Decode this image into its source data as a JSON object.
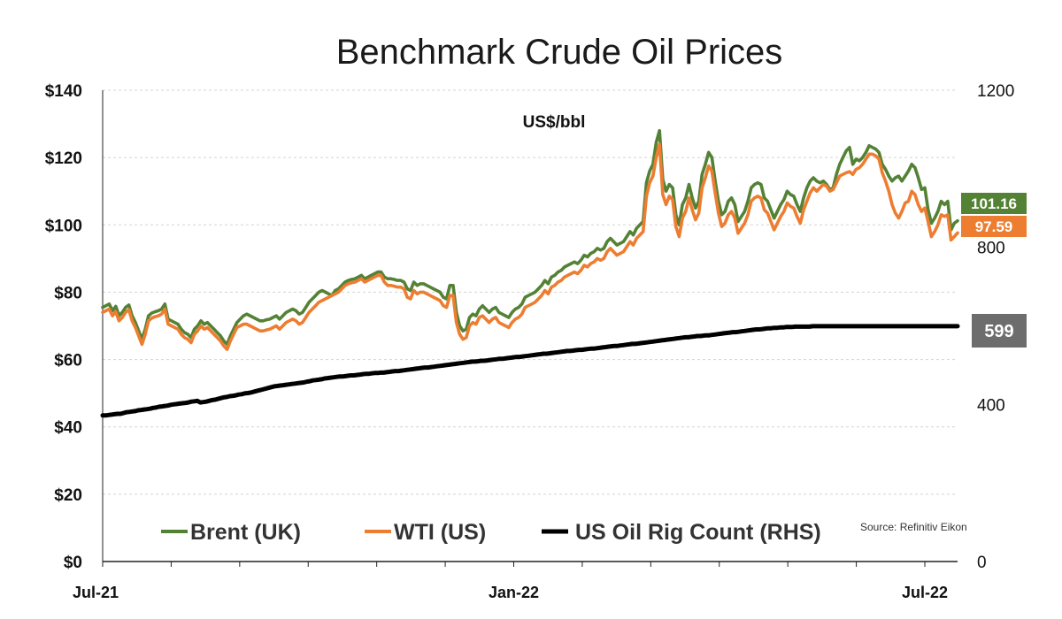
{
  "chart_data": {
    "type": "line",
    "title": "Benchmark Crude Oil Prices",
    "unit_label": "US$/bbl",
    "source": "Source: Refinitiv Eikon",
    "x_tick_labels": [
      "Jul-21",
      "Jan-22",
      "Jul-22"
    ],
    "y_left": {
      "range": [
        0,
        140
      ],
      "tick_values": [
        0,
        20,
        40,
        60,
        80,
        100,
        120,
        140
      ],
      "tick_labels": [
        "$0",
        "$20",
        "$40",
        "$60",
        "$80",
        "$100",
        "$120",
        "$140"
      ]
    },
    "y_right": {
      "range": [
        0,
        1200
      ],
      "tick_values": [
        0,
        400,
        800,
        1200
      ],
      "tick_labels": [
        "0",
        "400",
        "800",
        "1200"
      ]
    },
    "grid": true,
    "legend_position": "bottom",
    "series": [
      {
        "name": "Brent (UK)",
        "axis": "left",
        "color": "#548235",
        "end_label": "101.16",
        "values": [
          75.5,
          76.0,
          76.5,
          74.5,
          75.8,
          73.0,
          74.0,
          75.5,
          76.2,
          73.0,
          71.0,
          68.5,
          66.0,
          69.0,
          73.0,
          73.8,
          74.2,
          74.5,
          75.0,
          76.5,
          72.0,
          71.5,
          71.0,
          70.5,
          69.0,
          68.0,
          67.5,
          66.5,
          69.0,
          70.0,
          71.5,
          70.5,
          71.0,
          70.0,
          69.0,
          68.0,
          67.0,
          65.5,
          64.5,
          67.0,
          69.0,
          71.0,
          72.0,
          73.0,
          73.5,
          73.0,
          72.5,
          72.0,
          71.5,
          71.5,
          71.8,
          72.0,
          72.5,
          73.0,
          72.0,
          73.0,
          74.0,
          74.5,
          75.0,
          74.5,
          73.5,
          74.0,
          75.5,
          77.0,
          78.0,
          79.0,
          80.0,
          80.5,
          80.0,
          79.5,
          79.0,
          80.5,
          81.0,
          82.0,
          83.0,
          83.5,
          83.8,
          84.0,
          84.5,
          85.0,
          84.0,
          84.5,
          85.0,
          85.5,
          86.0,
          86.0,
          84.5,
          84.0,
          84.0,
          83.8,
          83.5,
          83.5,
          83.0,
          81.0,
          80.5,
          83.0,
          82.0,
          82.5,
          82.5,
          82.0,
          81.5,
          81.0,
          80.5,
          80.0,
          78.5,
          78.0,
          82.0,
          82.0,
          74.0,
          70.0,
          68.5,
          69.0,
          72.5,
          73.5,
          73.0,
          75.0,
          76.0,
          75.0,
          74.0,
          75.0,
          75.5,
          74.0,
          73.5,
          73.0,
          72.5,
          74.0,
          75.0,
          75.5,
          76.5,
          78.5,
          79.0,
          79.5,
          80.0,
          81.0,
          82.0,
          83.5,
          82.5,
          84.5,
          85.0,
          86.0,
          86.5,
          87.5,
          88.0,
          88.5,
          89.0,
          88.5,
          89.5,
          91.0,
          90.5,
          91.5,
          92.0,
          93.0,
          92.5,
          93.0,
          95.0,
          96.0,
          95.0,
          94.0,
          94.5,
          95.0,
          96.5,
          98.0,
          97.0,
          99.0,
          100.0,
          101.0,
          112.5,
          116.0,
          118.0,
          124.5,
          128.0,
          113.5,
          110.0,
          112.0,
          111.0,
          103.0,
          100.0,
          106.0,
          108.0,
          112.0,
          108.0,
          105.0,
          107.0,
          115.0,
          118.0,
          121.5,
          120.0,
          113.0,
          107.0,
          103.0,
          104.0,
          107.0,
          108.0,
          106.0,
          101.0,
          102.5,
          104.0,
          107.0,
          111.0,
          112.0,
          112.5,
          112.0,
          108.0,
          107.0,
          104.5,
          102.0,
          104.0,
          106.0,
          107.5,
          110.0,
          109.0,
          108.5,
          106.0,
          104.0,
          108.0,
          111.0,
          113.0,
          114.0,
          113.0,
          112.5,
          113.0,
          112.0,
          110.5,
          111.0,
          115.0,
          118.0,
          120.0,
          122.0,
          123.0,
          118.0,
          119.5,
          119.0,
          120.0,
          121.5,
          123.5,
          123.0,
          122.5,
          121.5,
          118.0,
          116.5,
          114.5,
          113.0,
          114.0,
          114.5,
          113.0,
          114.5,
          116.0,
          118.0,
          117.0,
          114.0,
          110.5,
          111.0,
          104.5,
          100.5,
          102.0,
          104.0,
          107.0,
          106.0,
          107.0,
          98.5,
          100.5,
          101.2
        ]
      },
      {
        "name": "WTI (US)",
        "axis": "left",
        "color": "#ED7D31",
        "end_label": "97.59",
        "values": [
          74.0,
          74.5,
          75.0,
          73.0,
          74.2,
          71.5,
          72.5,
          74.0,
          74.8,
          71.5,
          69.5,
          67.0,
          64.5,
          67.5,
          71.5,
          72.3,
          72.7,
          73.0,
          73.5,
          75.0,
          70.5,
          70.0,
          69.5,
          69.0,
          67.5,
          66.5,
          66.0,
          65.0,
          67.5,
          68.5,
          70.0,
          69.0,
          69.5,
          68.5,
          67.5,
          66.5,
          65.5,
          64.0,
          63.0,
          65.5,
          67.5,
          69.5,
          70.0,
          70.5,
          70.5,
          70.0,
          69.5,
          69.0,
          68.5,
          68.5,
          68.8,
          69.0,
          69.5,
          70.0,
          69.0,
          70.0,
          71.0,
          71.5,
          72.0,
          71.5,
          70.5,
          71.0,
          72.5,
          74.0,
          75.0,
          76.0,
          77.0,
          77.5,
          78.0,
          78.5,
          79.0,
          79.5,
          80.0,
          81.0,
          82.0,
          82.5,
          82.8,
          83.0,
          83.5,
          84.0,
          83.0,
          83.5,
          84.0,
          84.5,
          85.0,
          85.0,
          83.0,
          82.0,
          82.0,
          81.8,
          81.5,
          81.5,
          81.0,
          78.5,
          78.0,
          80.5,
          79.5,
          80.0,
          80.0,
          79.5,
          79.0,
          78.5,
          78.0,
          77.5,
          76.0,
          75.5,
          79.0,
          79.0,
          71.0,
          67.5,
          66.0,
          66.5,
          70.0,
          71.0,
          70.5,
          72.5,
          73.0,
          72.0,
          71.0,
          72.0,
          72.5,
          71.0,
          70.5,
          70.0,
          69.5,
          71.0,
          72.0,
          72.5,
          73.5,
          75.5,
          76.0,
          76.5,
          77.0,
          78.0,
          79.0,
          80.5,
          79.5,
          81.5,
          82.0,
          83.0,
          83.5,
          84.5,
          85.0,
          85.5,
          86.0,
          85.5,
          86.5,
          88.0,
          87.5,
          88.5,
          89.0,
          90.0,
          89.5,
          90.0,
          92.0,
          93.0,
          92.0,
          91.0,
          91.5,
          92.0,
          93.5,
          95.0,
          94.0,
          96.0,
          97.0,
          98.0,
          108.5,
          112.5,
          114.5,
          120.0,
          124.0,
          109.0,
          106.0,
          108.5,
          107.5,
          99.5,
          96.5,
          102.0,
          104.0,
          108.0,
          104.5,
          101.5,
          103.5,
          111.0,
          114.0,
          117.5,
          116.0,
          109.5,
          103.5,
          99.5,
          100.5,
          103.0,
          104.0,
          102.0,
          97.5,
          99.0,
          100.5,
          103.0,
          107.0,
          108.0,
          108.5,
          108.0,
          104.5,
          103.5,
          101.0,
          98.5,
          100.5,
          102.5,
          104.0,
          106.5,
          105.5,
          105.0,
          102.5,
          100.5,
          104.5,
          107.0,
          109.5,
          111.0,
          110.0,
          111.0,
          112.0,
          111.5,
          110.0,
          110.5,
          112.5,
          114.5,
          115.0,
          115.5,
          115.8,
          115.0,
          116.5,
          117.0,
          118.0,
          119.5,
          121.0,
          121.0,
          120.5,
          119.5,
          115.5,
          113.0,
          110.0,
          106.0,
          103.5,
          102.0,
          104.0,
          106.5,
          107.0,
          110.0,
          109.0,
          106.0,
          104.0,
          105.0,
          101.0,
          96.5,
          98.0,
          100.0,
          103.0,
          102.5,
          103.0,
          95.5,
          96.5,
          97.6
        ]
      },
      {
        "name": "US Oil Rig Count (RHS)",
        "axis": "right",
        "color": "#000000",
        "end_label": "599",
        "values": [
          372,
          372,
          373,
          374,
          375,
          376,
          376,
          378,
          380,
          381,
          382,
          383,
          385,
          386,
          387,
          388,
          389,
          391,
          392,
          394,
          395,
          396,
          397,
          399,
          400,
          401,
          402,
          403,
          404,
          405,
          407,
          408,
          409,
          405,
          406,
          407,
          409,
          411,
          412,
          414,
          416,
          418,
          419,
          421,
          422,
          423,
          425,
          426,
          428,
          429,
          430,
          432,
          434,
          436,
          438,
          440,
          442,
          444,
          446,
          447,
          448,
          449,
          450,
          451,
          452,
          453,
          454,
          455,
          456,
          458,
          459,
          461,
          462,
          463,
          464,
          466,
          467,
          468,
          469,
          470,
          471,
          471,
          472,
          473,
          474,
          474,
          475,
          476,
          477,
          478,
          478,
          479,
          480,
          480,
          481,
          481,
          482,
          483,
          484,
          485,
          485,
          486,
          487,
          488,
          489,
          490,
          491,
          492,
          493,
          494,
          494,
          495,
          496,
          497,
          498,
          499,
          500,
          501,
          502,
          503,
          504,
          505,
          506,
          507,
          508,
          509,
          509,
          510,
          511,
          511,
          512,
          513,
          514,
          515,
          516,
          516,
          517,
          518,
          519,
          520,
          521,
          521,
          522,
          523,
          524,
          525,
          526,
          527,
          528,
          529,
          529,
          530,
          531,
          532,
          533,
          534,
          535,
          536,
          536,
          537,
          538,
          539,
          539,
          540,
          541,
          542,
          542,
          543,
          544,
          545,
          546,
          547,
          548,
          549,
          549,
          550,
          551,
          552,
          553,
          554,
          554,
          555,
          556,
          557,
          558,
          559,
          560,
          561,
          562,
          563,
          564,
          565,
          566,
          567,
          568,
          569,
          570,
          571,
          571,
          572,
          573,
          574,
          574,
          575,
          576,
          576,
          577,
          578,
          579,
          580,
          581,
          582,
          583,
          584,
          584,
          585,
          586,
          587,
          588,
          589,
          590,
          591,
          591,
          592,
          593,
          594,
          594,
          595,
          595,
          596,
          596,
          597,
          597,
          597,
          598,
          598,
          598,
          598,
          598,
          598,
          599,
          599,
          599,
          599,
          599,
          599,
          599,
          599,
          599,
          599,
          599,
          599,
          599,
          599,
          599,
          599,
          599,
          599,
          599,
          599,
          599,
          599,
          599,
          599,
          599,
          599,
          599,
          599,
          599,
          599,
          599,
          599,
          599,
          599,
          599,
          599,
          599,
          599,
          599,
          599,
          599,
          599,
          599,
          599,
          599,
          599,
          599,
          599,
          599,
          599
        ]
      }
    ]
  }
}
